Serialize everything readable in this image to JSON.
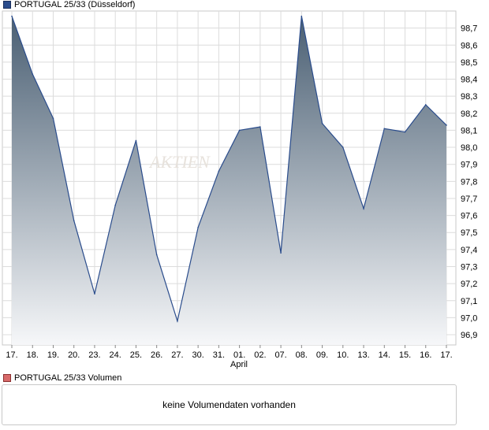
{
  "chart_data": {
    "type": "area",
    "title": "PORTUGAL 25/33 (Düsseldorf)",
    "x": [
      "17.",
      "18.",
      "19.",
      "20.",
      "23.",
      "24.",
      "25.",
      "26.",
      "27.",
      "30.",
      "31.",
      "01.",
      "02.",
      "07.",
      "08.",
      "09.",
      "10.",
      "13.",
      "14.",
      "15.",
      "16.",
      "17."
    ],
    "month_label": "April",
    "series": [
      {
        "name": "PORTUGAL 25/33 (Düsseldorf)",
        "values": [
          98.77,
          98.43,
          98.17,
          97.57,
          97.14,
          97.66,
          98.04,
          97.37,
          96.98,
          97.53,
          97.86,
          98.1,
          98.12,
          97.38,
          98.77,
          98.14,
          98.0,
          97.64,
          98.11,
          98.09,
          98.25,
          98.13
        ]
      }
    ],
    "yticks": [
      "96,9",
      "97,0",
      "97,1",
      "97,2",
      "97,3",
      "97,4",
      "97,5",
      "97,6",
      "97,7",
      "97,8",
      "97,9",
      "98,0",
      "98,1",
      "98,2",
      "98,3",
      "98,4",
      "98,5",
      "98,6",
      "98,7"
    ],
    "ylim": [
      96.84,
      98.8
    ],
    "grid": true,
    "colors": {
      "line": "#2a4c8c",
      "fill_top": "#4a5f73",
      "fill_bottom": "#f6f7f9",
      "grid": "#dcdcdc"
    }
  },
  "volume": {
    "legend": "PORTUGAL 25/33 Volumen",
    "message": "keine Volumendaten vorhanden"
  },
  "watermark": "AKTIEN"
}
